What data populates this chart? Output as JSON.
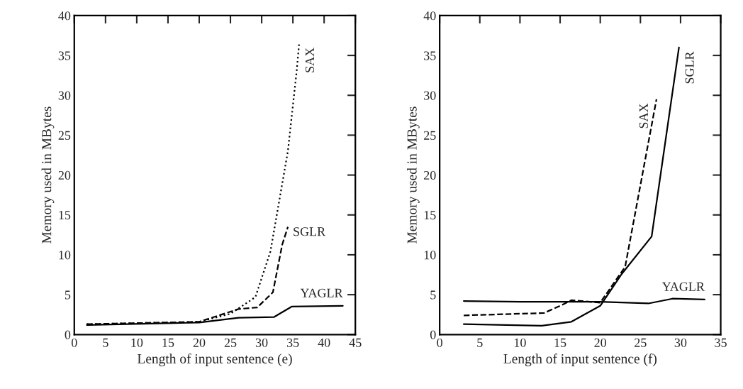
{
  "chart_data": [
    {
      "type": "line",
      "xlabel": "Length of input sentence (e)",
      "ylabel": "Memory used in MBytes",
      "xlim": [
        0,
        45
      ],
      "ylim": [
        0,
        40
      ],
      "xticks": [
        0,
        5,
        10,
        15,
        20,
        25,
        30,
        35,
        40,
        45
      ],
      "yticks": [
        0,
        5,
        10,
        15,
        20,
        25,
        30,
        35,
        40
      ],
      "grid": false,
      "legend": false,
      "series": [
        {
          "name": "SAX",
          "color": "#000000",
          "line_style": "dotted",
          "x": [
            2,
            20,
            25,
            29,
            31.4,
            34.2,
            35.6,
            36
          ],
          "values": [
            1.3,
            1.6,
            2.6,
            4.7,
            10.4,
            23,
            33,
            36.5
          ]
        },
        {
          "name": "SGLR",
          "color": "#000000",
          "line_style": "dashed",
          "x": [
            2,
            20,
            26.3,
            29.3,
            31.8,
            33.3,
            34.2
          ],
          "values": [
            1.3,
            1.6,
            3.2,
            3.4,
            5.3,
            11.3,
            13.5
          ]
        },
        {
          "name": "YAGLR",
          "color": "#000000",
          "line_style": "solid",
          "x": [
            2,
            20,
            26.3,
            32,
            34.8,
            43
          ],
          "values": [
            1.2,
            1.5,
            2.1,
            2.2,
            3.5,
            3.6
          ]
        }
      ]
    },
    {
      "type": "line",
      "xlabel": "Length of input sentence (f)",
      "ylabel": "Memory used in MBytes",
      "xlim": [
        0,
        35
      ],
      "ylim": [
        0,
        40
      ],
      "xticks": [
        0,
        5,
        10,
        15,
        20,
        25,
        30,
        35
      ],
      "yticks": [
        0,
        5,
        10,
        15,
        20,
        25,
        30,
        35,
        40
      ],
      "grid": false,
      "legend": false,
      "series": [
        {
          "name": "SAX",
          "color": "#000000",
          "line_style": "dashed",
          "x": [
            3,
            13,
            15.2,
            16.4,
            20,
            23.1,
            27
          ],
          "values": [
            2.4,
            2.7,
            3.7,
            4.3,
            4.0,
            8.5,
            29.5
          ]
        },
        {
          "name": "SGLR",
          "color": "#000000",
          "line_style": "solid",
          "x": [
            3,
            12.7,
            16.4,
            20,
            22.6,
            26.4,
            29.8
          ],
          "values": [
            1.3,
            1.1,
            1.6,
            3.6,
            7.5,
            12.3,
            36
          ]
        },
        {
          "name": "YAGLR",
          "color": "#000000",
          "line_style": "solid",
          "x": [
            3,
            10,
            20,
            26,
            29,
            33
          ],
          "values": [
            4.2,
            4.1,
            4.1,
            3.9,
            4.5,
            4.4
          ]
        }
      ]
    }
  ]
}
